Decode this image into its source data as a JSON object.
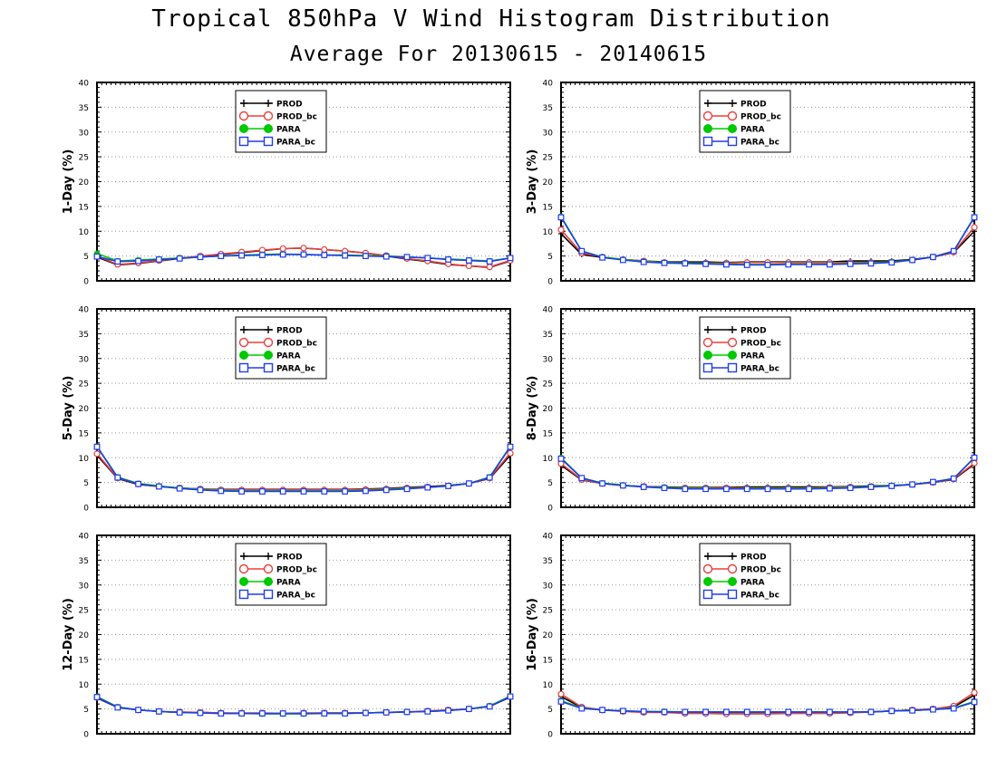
{
  "title": "Tropical 850hPa V Wind Histogram Distribution",
  "subtitle": "Average For 20130615 - 20140615",
  "legend": [
    {
      "name": "PROD",
      "color": "#000000",
      "marker": "plus"
    },
    {
      "name": "PROD_bc",
      "color": "#e8403c",
      "marker": "open-circle"
    },
    {
      "name": "PARA",
      "color": "#00c800",
      "marker": "filled-circle"
    },
    {
      "name": "PARA_bc",
      "color": "#1f3cf0",
      "marker": "open-square"
    }
  ],
  "yticks": [
    "0",
    "5",
    "10",
    "15",
    "20",
    "25",
    "30",
    "35",
    "40"
  ],
  "chart_data": [
    {
      "type": "line",
      "ylabel": "1-Day (%)",
      "ylim": [
        0,
        40
      ],
      "x": [
        1,
        2,
        3,
        4,
        5,
        6,
        7,
        8,
        9,
        10,
        11,
        12,
        13,
        14,
        15,
        16,
        17,
        18,
        19,
        20,
        21
      ],
      "series": [
        {
          "name": "PROD",
          "values": [
            4.8,
            3.2,
            3.5,
            4.0,
            4.5,
            4.9,
            5.3,
            5.7,
            6.1,
            6.5,
            6.6,
            6.3,
            6.0,
            5.6,
            5.0,
            4.4,
            3.9,
            3.3,
            3.0,
            2.7,
            4.0
          ]
        },
        {
          "name": "PROD_bc",
          "values": [
            5.0,
            3.3,
            3.6,
            4.1,
            4.6,
            5.0,
            5.4,
            5.8,
            6.2,
            6.5,
            6.6,
            6.3,
            6.0,
            5.6,
            5.1,
            4.5,
            4.0,
            3.4,
            3.0,
            2.8,
            4.1
          ]
        },
        {
          "name": "PARA",
          "values": [
            5.5,
            4.0,
            4.2,
            4.4,
            4.6,
            4.8,
            5.0,
            5.2,
            5.3,
            5.4,
            5.3,
            5.2,
            5.2,
            5.1,
            5.0,
            4.8,
            4.6,
            4.4,
            4.2,
            4.0,
            4.6
          ]
        },
        {
          "name": "PARA_bc",
          "values": [
            4.9,
            3.9,
            4.0,
            4.3,
            4.5,
            4.8,
            5.0,
            5.1,
            5.2,
            5.3,
            5.3,
            5.2,
            5.1,
            5.0,
            4.9,
            4.8,
            4.6,
            4.3,
            4.1,
            3.9,
            4.6
          ]
        }
      ]
    },
    {
      "type": "line",
      "ylabel": "3-Day (%)",
      "ylim": [
        0,
        40
      ],
      "x": [
        1,
        2,
        3,
        4,
        5,
        6,
        7,
        8,
        9,
        10,
        11,
        12,
        13,
        14,
        15,
        16,
        17,
        18,
        19,
        20,
        21
      ],
      "series": [
        {
          "name": "PROD",
          "values": [
            9.5,
            5.3,
            4.7,
            4.3,
            4.0,
            3.8,
            3.8,
            3.8,
            3.7,
            3.8,
            3.8,
            3.8,
            3.8,
            3.8,
            4.0,
            4.0,
            4.0,
            4.3,
            4.8,
            5.7,
            10.0
          ]
        },
        {
          "name": "PROD_bc",
          "values": [
            10.3,
            5.6,
            4.8,
            4.3,
            4.0,
            3.7,
            3.6,
            3.6,
            3.6,
            3.7,
            3.7,
            3.7,
            3.7,
            3.7,
            3.7,
            3.7,
            3.8,
            4.2,
            4.8,
            5.8,
            10.8
          ]
        },
        {
          "name": "PARA",
          "values": [
            13.0,
            6.0,
            4.8,
            4.3,
            3.9,
            3.7,
            3.6,
            3.5,
            3.4,
            3.3,
            3.3,
            3.4,
            3.4,
            3.4,
            3.5,
            3.6,
            3.8,
            4.2,
            4.8,
            6.0,
            12.9
          ]
        },
        {
          "name": "PARA_bc",
          "values": [
            12.8,
            6.0,
            4.7,
            4.2,
            3.8,
            3.6,
            3.5,
            3.4,
            3.3,
            3.2,
            3.2,
            3.3,
            3.3,
            3.3,
            3.4,
            3.5,
            3.7,
            4.2,
            4.8,
            6.0,
            12.8
          ]
        }
      ]
    },
    {
      "type": "line",
      "ylabel": "5-Day (%)",
      "ylim": [
        0,
        40
      ],
      "x": [
        1,
        2,
        3,
        4,
        5,
        6,
        7,
        8,
        9,
        10,
        11,
        12,
        13,
        14,
        15,
        16,
        17,
        18,
        19,
        20,
        21
      ],
      "series": [
        {
          "name": "PROD",
          "values": [
            10.5,
            5.8,
            4.6,
            4.2,
            3.9,
            3.7,
            3.6,
            3.6,
            3.6,
            3.6,
            3.6,
            3.6,
            3.6,
            3.7,
            3.8,
            4.0,
            4.2,
            4.4,
            4.8,
            5.8,
            10.5
          ]
        },
        {
          "name": "PROD_bc",
          "values": [
            10.8,
            5.9,
            4.7,
            4.2,
            3.9,
            3.7,
            3.5,
            3.5,
            3.5,
            3.5,
            3.5,
            3.5,
            3.5,
            3.6,
            3.7,
            3.9,
            4.1,
            4.3,
            4.8,
            5.9,
            10.9
          ]
        },
        {
          "name": "PARA",
          "values": [
            12.3,
            6.1,
            4.8,
            4.3,
            3.9,
            3.6,
            3.4,
            3.3,
            3.3,
            3.3,
            3.3,
            3.3,
            3.3,
            3.4,
            3.6,
            3.8,
            4.0,
            4.3,
            4.8,
            6.1,
            12.3
          ]
        },
        {
          "name": "PARA_bc",
          "values": [
            12.2,
            6.0,
            4.7,
            4.2,
            3.8,
            3.5,
            3.3,
            3.2,
            3.2,
            3.2,
            3.2,
            3.2,
            3.2,
            3.3,
            3.5,
            3.7,
            4.0,
            4.3,
            4.8,
            6.0,
            12.2
          ]
        }
      ]
    },
    {
      "type": "line",
      "ylabel": "8-Day (%)",
      "ylim": [
        0,
        40
      ],
      "x": [
        1,
        2,
        3,
        4,
        5,
        6,
        7,
        8,
        9,
        10,
        11,
        12,
        13,
        14,
        15,
        16,
        17,
        18,
        19,
        20,
        21
      ],
      "series": [
        {
          "name": "PROD",
          "values": [
            8.5,
            5.5,
            4.8,
            4.4,
            4.2,
            4.1,
            4.0,
            4.0,
            4.0,
            4.1,
            4.1,
            4.1,
            4.1,
            4.1,
            4.2,
            4.3,
            4.4,
            4.6,
            5.0,
            5.6,
            8.7
          ]
        },
        {
          "name": "PROD_bc",
          "values": [
            8.8,
            5.6,
            4.8,
            4.4,
            4.2,
            4.0,
            3.9,
            3.9,
            3.9,
            3.9,
            3.9,
            3.9,
            3.9,
            4.0,
            4.1,
            4.2,
            4.3,
            4.6,
            5.0,
            5.7,
            8.9
          ]
        },
        {
          "name": "PARA",
          "values": [
            10.0,
            5.9,
            4.9,
            4.5,
            4.1,
            4.0,
            3.8,
            3.8,
            3.7,
            3.8,
            3.8,
            3.8,
            3.8,
            3.9,
            4.0,
            4.2,
            4.4,
            4.6,
            5.1,
            5.8,
            10.0
          ]
        },
        {
          "name": "PARA_bc",
          "values": [
            9.8,
            5.9,
            4.8,
            4.4,
            4.1,
            3.9,
            3.7,
            3.7,
            3.7,
            3.7,
            3.7,
            3.7,
            3.7,
            3.8,
            3.9,
            4.1,
            4.3,
            4.6,
            5.1,
            5.8,
            10.0
          ]
        }
      ]
    },
    {
      "type": "line",
      "ylabel": "12-Day (%)",
      "ylim": [
        0,
        40
      ],
      "x": [
        1,
        2,
        3,
        4,
        5,
        6,
        7,
        8,
        9,
        10,
        11,
        12,
        13,
        14,
        15,
        16,
        17,
        18,
        19,
        20,
        21
      ],
      "series": [
        {
          "name": "PROD",
          "values": [
            7.2,
            5.3,
            4.8,
            4.5,
            4.3,
            4.3,
            4.2,
            4.1,
            4.1,
            4.1,
            4.1,
            4.2,
            4.2,
            4.2,
            4.3,
            4.4,
            4.5,
            4.7,
            5.0,
            5.5,
            7.4
          ]
        },
        {
          "name": "PROD_bc",
          "values": [
            7.3,
            5.4,
            4.8,
            4.5,
            4.4,
            4.3,
            4.2,
            4.2,
            4.2,
            4.1,
            4.2,
            4.2,
            4.2,
            4.2,
            4.3,
            4.4,
            4.6,
            4.8,
            5.0,
            5.6,
            7.5
          ]
        },
        {
          "name": "PARA",
          "values": [
            7.5,
            5.4,
            4.8,
            4.5,
            4.3,
            4.2,
            4.1,
            4.1,
            4.0,
            4.0,
            4.0,
            4.1,
            4.1,
            4.2,
            4.3,
            4.4,
            4.5,
            4.7,
            5.0,
            5.6,
            7.6
          ]
        },
        {
          "name": "PARA_bc",
          "values": [
            7.4,
            5.3,
            4.8,
            4.5,
            4.3,
            4.2,
            4.1,
            4.1,
            4.1,
            4.1,
            4.1,
            4.1,
            4.1,
            4.2,
            4.3,
            4.4,
            4.5,
            4.7,
            5.0,
            5.5,
            7.5
          ]
        }
      ]
    },
    {
      "type": "line",
      "ylabel": "16-Day (%)",
      "ylim": [
        0,
        40
      ],
      "x": [
        1,
        2,
        3,
        4,
        5,
        6,
        7,
        8,
        9,
        10,
        11,
        12,
        13,
        14,
        15,
        16,
        17,
        18,
        19,
        20,
        21
      ],
      "series": [
        {
          "name": "PROD",
          "values": [
            7.5,
            5.3,
            4.8,
            4.6,
            4.4,
            4.4,
            4.3,
            4.3,
            4.3,
            4.3,
            4.3,
            4.3,
            4.3,
            4.3,
            4.3,
            4.4,
            4.6,
            4.8,
            5.0,
            5.4,
            7.8
          ]
        },
        {
          "name": "PROD_bc",
          "values": [
            8.0,
            5.4,
            4.8,
            4.5,
            4.3,
            4.3,
            4.1,
            4.1,
            4.0,
            4.0,
            4.0,
            4.1,
            4.1,
            4.1,
            4.2,
            4.4,
            4.6,
            4.8,
            5.0,
            5.6,
            8.3
          ]
        },
        {
          "name": "PARA",
          "values": [
            6.7,
            5.2,
            4.8,
            4.6,
            4.5,
            4.5,
            4.4,
            4.4,
            4.4,
            4.4,
            4.4,
            4.4,
            4.4,
            4.4,
            4.4,
            4.4,
            4.6,
            4.7,
            4.9,
            5.2,
            6.5
          ]
        },
        {
          "name": "PARA_bc",
          "values": [
            6.5,
            5.1,
            4.8,
            4.6,
            4.5,
            4.4,
            4.4,
            4.4,
            4.4,
            4.4,
            4.4,
            4.4,
            4.4,
            4.4,
            4.4,
            4.4,
            4.6,
            4.7,
            4.9,
            5.1,
            6.4
          ]
        }
      ]
    }
  ]
}
